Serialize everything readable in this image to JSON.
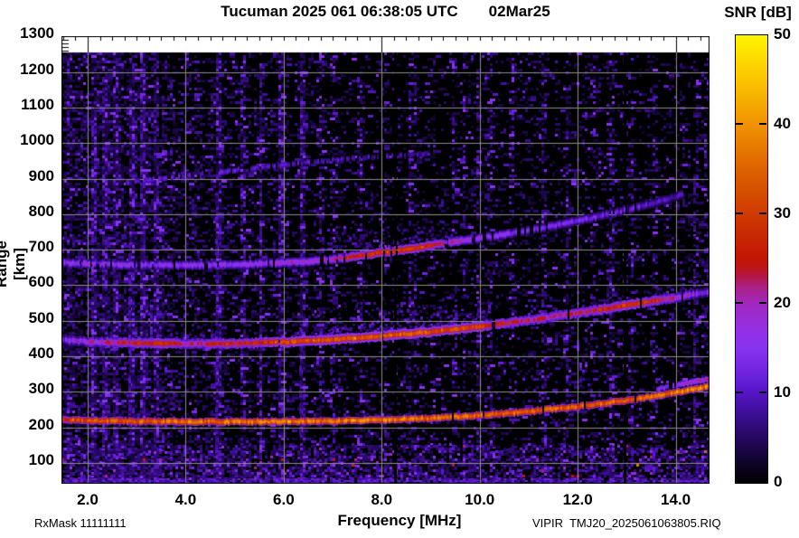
{
  "title": {
    "station_time": "Tucuman 2025 061 06:38:05 UTC",
    "date": "02Mar25"
  },
  "colorbar": {
    "label": "SNR [dB]",
    "min": 0,
    "max": 50,
    "tick_values": [
      0,
      10,
      20,
      30,
      40,
      50
    ],
    "tick_labels": [
      "0",
      "10",
      "20",
      "30",
      "40",
      "50"
    ],
    "gradient_stops": [
      [
        0,
        "#000000"
      ],
      [
        3,
        "#140538"
      ],
      [
        5,
        "#260860"
      ],
      [
        8,
        "#3e0f9a"
      ],
      [
        10,
        "#5514c4"
      ],
      [
        12,
        "#6c22dc"
      ],
      [
        15,
        "#8833ee"
      ],
      [
        17,
        "#9430e4"
      ],
      [
        20,
        "#a128c0"
      ],
      [
        22,
        "#ac2080"
      ],
      [
        23,
        "#b01848"
      ],
      [
        24,
        "#bd1518"
      ],
      [
        25,
        "#c11505"
      ],
      [
        30,
        "#ce3a00"
      ],
      [
        35,
        "#de6200"
      ],
      [
        40,
        "#f09200"
      ],
      [
        45,
        "#fbc400"
      ],
      [
        50,
        "#fff400"
      ]
    ]
  },
  "axes": {
    "x": {
      "label": "Frequency [MHz]",
      "tick_values": [
        2,
        4,
        6,
        8,
        10,
        12,
        14
      ],
      "tick_labels": [
        "2.0",
        "4.0",
        "6.0",
        "8.0",
        "10.0",
        "12.0",
        "14.0"
      ],
      "range_mhz": [
        1.465,
        14.69
      ],
      "minor_step_mhz": 0.25,
      "grid_step_mhz": 2,
      "top_major_freqs": [
        2,
        8,
        14
      ]
    },
    "y": {
      "label": "Range [km]",
      "tick_values": [
        100,
        200,
        300,
        400,
        500,
        600,
        700,
        800,
        900,
        1000,
        1100,
        1200,
        1300
      ],
      "tick_labels": [
        "100",
        "200",
        "300",
        "400",
        "500",
        "600",
        "700",
        "800",
        "900",
        "1000",
        "1100",
        "1200",
        "1300"
      ],
      "range_km": [
        41.5,
        1255
      ],
      "grid_step_km": 100
    }
  },
  "footer": {
    "rx_mask": "RxMask 11111111",
    "filename": "VIPIR  TMJ20_2025061063805.RIQ"
  },
  "chart_data": {
    "type": "heatmap",
    "title": "Tucuman 2025 061 06:38:05 UTC 02Mar25 — VIPIR ionogram, SNR [dB] vs Frequency and Range",
    "xlabel": "Frequency [MHz]",
    "ylabel": "Range [km]",
    "zlabel": "SNR [dB]",
    "x_range_mhz": [
      1.465,
      14.69
    ],
    "y_range_km": [
      41.5,
      1255
    ],
    "z_range_db": [
      0,
      50
    ],
    "grid": true,
    "traces": [
      {
        "name": "F-region echo, 1st hop",
        "points_mhz_km": [
          [
            1.47,
            222
          ],
          [
            2,
            219
          ],
          [
            3,
            217
          ],
          [
            4,
            216
          ],
          [
            5,
            216
          ],
          [
            6,
            217
          ],
          [
            7,
            218
          ],
          [
            8,
            221
          ],
          [
            9,
            226
          ],
          [
            10,
            234
          ],
          [
            11,
            245
          ],
          [
            12,
            259
          ],
          [
            13,
            276
          ],
          [
            13.6,
            289
          ],
          [
            14.1,
            301
          ],
          [
            14.45,
            309
          ],
          [
            14.69,
            316
          ]
        ],
        "snr_db": [
          [
            1.47,
            28
          ],
          [
            2,
            32
          ],
          [
            2.6,
            34
          ],
          [
            4,
            36
          ],
          [
            6,
            36
          ],
          [
            8,
            37
          ],
          [
            9,
            36
          ],
          [
            10,
            35
          ],
          [
            11,
            34
          ],
          [
            12,
            34
          ],
          [
            13,
            35
          ],
          [
            13.8,
            36
          ],
          [
            14.3,
            38
          ],
          [
            14.69,
            38
          ]
        ],
        "jitter": 5,
        "drop": 0.02,
        "core_h": 3.5,
        "halo_h": 8,
        "fleck": 0.06
      },
      {
        "name": "O/X split upper branch",
        "points_mhz_km": [
          [
            13.6,
            308
          ],
          [
            14.1,
            321
          ],
          [
            14.69,
            338
          ]
        ],
        "snr_db": [
          [
            13.6,
            14
          ],
          [
            14.1,
            18
          ],
          [
            14.69,
            20
          ]
        ],
        "jitter": 3,
        "drop": 0.1,
        "core_h": 2.5,
        "halo_h": 5,
        "fleck": 0.02
      },
      {
        "name": "F-region echo, 2nd hop",
        "points_mhz_km": [
          [
            1.47,
            446
          ],
          [
            2,
            441
          ],
          [
            3,
            437
          ],
          [
            4,
            435
          ],
          [
            5,
            436
          ],
          [
            6,
            440
          ],
          [
            7,
            447
          ],
          [
            8,
            457
          ],
          [
            9,
            469
          ],
          [
            10,
            484
          ],
          [
            11,
            502
          ],
          [
            12,
            522
          ],
          [
            12.7,
            537
          ],
          [
            13.3,
            551
          ],
          [
            14,
            566
          ],
          [
            14.69,
            582
          ]
        ],
        "snr_db": [
          [
            1.47,
            14
          ],
          [
            2,
            18
          ],
          [
            2.6,
            24
          ],
          [
            3.4,
            26
          ],
          [
            4.2,
            22
          ],
          [
            5,
            24
          ],
          [
            5.6,
            28
          ],
          [
            6.2,
            31
          ],
          [
            7,
            32
          ],
          [
            8,
            33
          ],
          [
            9,
            33
          ],
          [
            9.8,
            31
          ],
          [
            10.4,
            26
          ],
          [
            11,
            22
          ],
          [
            11.6,
            21
          ],
          [
            12.2,
            24
          ],
          [
            12.8,
            29
          ],
          [
            13.3,
            28
          ],
          [
            13.8,
            22
          ],
          [
            14.2,
            16
          ],
          [
            14.69,
            13
          ]
        ],
        "jitter": 4,
        "drop": 0.03,
        "core_h": 4,
        "halo_h": 11,
        "fleck": 0.08
      },
      {
        "name": "F-region echo, 3rd hop",
        "points_mhz_km": [
          [
            1.5,
            663
          ],
          [
            2,
            660
          ],
          [
            3,
            657
          ],
          [
            4,
            656
          ],
          [
            5,
            658
          ],
          [
            6,
            663
          ],
          [
            6.8,
            670
          ],
          [
            7.4,
            680
          ],
          [
            8,
            692
          ],
          [
            8.6,
            703
          ],
          [
            9,
            712
          ],
          [
            9.6,
            725
          ],
          [
            10.4,
            741
          ],
          [
            11.2,
            760
          ],
          [
            12,
            781
          ],
          [
            12.8,
            806
          ],
          [
            13.5,
            830
          ],
          [
            14.2,
            858
          ]
        ],
        "snr_db": [
          [
            1.5,
            15
          ],
          [
            2,
            16
          ],
          [
            3,
            15
          ],
          [
            4,
            15
          ],
          [
            5,
            16
          ],
          [
            6,
            17
          ],
          [
            6.8,
            19
          ],
          [
            7.3,
            24
          ],
          [
            7.7,
            28
          ],
          [
            8.1,
            30
          ],
          [
            8.6,
            29
          ],
          [
            9,
            26
          ],
          [
            9.4,
            21
          ],
          [
            10,
            17
          ],
          [
            10.8,
            14
          ],
          [
            11.6,
            13
          ],
          [
            12.4,
            12
          ],
          [
            13.2,
            11
          ],
          [
            14.2,
            9
          ]
        ],
        "jitter": 3,
        "drop": 0.14,
        "core_h": 3.5,
        "halo_h": 10,
        "fleck": 0.03
      },
      {
        "name": "Faint 4th-hop / oblique echo",
        "points_mhz_km": [
          [
            2.7,
            888
          ],
          [
            3.5,
            900
          ],
          [
            4.5,
            916
          ],
          [
            5.5,
            932
          ],
          [
            6.5,
            946
          ],
          [
            7.5,
            958
          ],
          [
            8.9,
            970
          ]
        ],
        "snr_db": [
          [
            2.7,
            10
          ],
          [
            3.5,
            11
          ],
          [
            4.5,
            11
          ],
          [
            5.5,
            10
          ],
          [
            6.5,
            10
          ],
          [
            7.5,
            9
          ],
          [
            8.9,
            8
          ]
        ],
        "jitter": 2,
        "drop": 0.45,
        "core_h": 2.5,
        "halo_h": 5,
        "fleck": 0.0
      }
    ],
    "spread_clouds": [
      {
        "f": [
          6.25,
          10.35
        ],
        "base_trace": 2,
        "off_km": [
          6,
          110
        ],
        "n": 10,
        "smax": 15
      },
      {
        "f": [
          2.3,
          5.0
        ],
        "base_trace": 2,
        "off_km": [
          6,
          60
        ],
        "n": 6,
        "smax": 12
      },
      {
        "f": [
          6.8,
          9.7
        ],
        "base_trace": 3,
        "off_km": [
          6,
          85
        ],
        "n": 8,
        "smax": 13
      },
      {
        "f": [
          6.9,
          9.3
        ],
        "base_trace": 0,
        "off_km": [
          5,
          30
        ],
        "n": 4,
        "smax": 11
      },
      {
        "f": [
          12.3,
          14.6
        ],
        "base_trace": 2,
        "off_km": [
          6,
          60
        ],
        "n": 3,
        "smax": 11
      }
    ],
    "noise": {
      "seed": 20250302,
      "column_density": [
        [
          1.465,
          0.5
        ],
        [
          2.2,
          0.52
        ],
        [
          3.5,
          0.46
        ],
        [
          4.0,
          0.34
        ],
        [
          4.5,
          0.28
        ],
        [
          5.5,
          0.24
        ],
        [
          6.5,
          0.2
        ],
        [
          8,
          0.17
        ],
        [
          9.5,
          0.15
        ],
        [
          11,
          0.15
        ],
        [
          13,
          0.16
        ],
        [
          14.69,
          0.17
        ]
      ],
      "bottom_band_km": [
        41.5,
        150
      ],
      "rfi_streaks": [
        [
          2.1,
          4
        ],
        [
          2.3,
          3
        ],
        [
          2.55,
          4.5
        ],
        [
          2.85,
          5
        ],
        [
          3.1,
          3.5
        ],
        [
          3.35,
          3
        ],
        [
          4.62,
          6
        ],
        [
          5.15,
          2.5
        ],
        [
          5.55,
          2
        ],
        [
          5.9,
          3
        ],
        [
          6.35,
          3.5
        ],
        [
          6.7,
          2
        ],
        [
          6.95,
          3.5
        ],
        [
          7.5,
          2.5
        ],
        [
          8.0,
          2
        ],
        [
          8.55,
          2
        ],
        [
          9.0,
          2
        ],
        [
          9.45,
          2.5
        ],
        [
          10.1,
          2
        ],
        [
          10.65,
          2.5
        ],
        [
          11.3,
          3
        ],
        [
          11.75,
          2
        ],
        [
          12.3,
          2.5
        ],
        [
          12.62,
          3
        ],
        [
          13.05,
          2
        ],
        [
          13.55,
          2
        ],
        [
          14.1,
          2
        ],
        [
          14.38,
          2.5
        ],
        [
          14.6,
          2
        ]
      ],
      "rfi_patches": [
        [
          12.05,
          320,
          390,
          13
        ],
        [
          9.5,
          430,
          560,
          11
        ],
        [
          6.33,
          180,
          520,
          10
        ],
        [
          4.62,
          120,
          860,
          11
        ],
        [
          2.85,
          120,
          720,
          11
        ],
        [
          3.3,
          400,
          560,
          12
        ],
        [
          14.38,
          150,
          900,
          9
        ]
      ],
      "blank_columns_mhz": [
        8.27,
        12.95
      ]
    }
  }
}
